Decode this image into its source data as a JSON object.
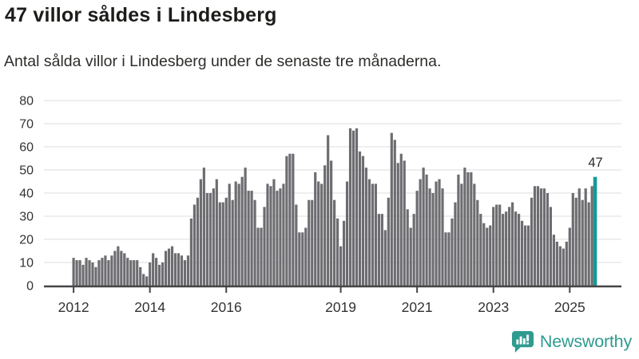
{
  "header": {
    "title": "47 villor såldes i Lindesberg",
    "subtitle": "Antal sålda villor i Lindesberg under de senaste tre månaderna."
  },
  "chart_data": {
    "type": "bar",
    "title": "47 villor såldes i Lindesberg",
    "subtitle": "Antal sålda villor i Lindesberg under de senaste tre månaderna.",
    "x_unit": "month",
    "x_start": "2012-01",
    "x_end": "2025-09",
    "values": [
      12,
      11,
      11,
      9,
      12,
      11,
      10,
      8,
      11,
      12,
      13,
      11,
      13,
      15,
      17,
      15,
      14,
      12,
      11,
      11,
      11,
      8,
      5,
      4,
      10,
      14,
      12,
      9,
      10,
      15,
      16,
      17,
      14,
      14,
      13,
      11,
      13,
      29,
      35,
      38,
      46,
      51,
      40,
      40,
      42,
      46,
      36,
      36,
      38,
      44,
      37,
      45,
      44,
      47,
      51,
      41,
      41,
      37,
      25,
      25,
      34,
      44,
      43,
      46,
      41,
      42,
      44,
      56,
      57,
      57,
      35,
      23,
      23,
      25,
      37,
      37,
      49,
      45,
      44,
      52,
      65,
      54,
      37,
      29,
      17,
      28,
      45,
      68,
      67,
      68,
      58,
      56,
      51,
      46,
      44,
      44,
      31,
      31,
      24,
      38,
      66,
      63,
      53,
      57,
      54,
      33,
      25,
      31,
      41,
      46,
      51,
      48,
      42,
      40,
      45,
      46,
      42,
      23,
      23,
      29,
      36,
      48,
      44,
      51,
      49,
      49,
      44,
      37,
      31,
      27,
      25,
      26,
      34,
      35,
      35,
      31,
      32,
      34,
      36,
      32,
      31,
      28,
      26,
      26,
      38,
      43,
      43,
      42,
      42,
      40,
      34,
      22,
      19,
      17,
      16,
      19,
      25,
      40,
      38,
      42,
      37,
      42,
      36,
      43,
      47
    ],
    "highlight": {
      "index": 164,
      "value": 47,
      "label": "47",
      "color": "#149b96"
    },
    "bar_color": "#6d6d71",
    "grid": true,
    "grid_color": "#e4e4e4",
    "axis_color": "#454545",
    "tick_label_color": "#333333",
    "annotation_color": "#2a2a2a",
    "ylim": [
      0,
      80
    ],
    "yticks": [
      0,
      10,
      20,
      30,
      40,
      50,
      60,
      70,
      80
    ],
    "xticks": [
      {
        "label": "2012",
        "month_index": 0
      },
      {
        "label": "2014",
        "month_index": 24
      },
      {
        "label": "2016",
        "month_index": 48
      },
      {
        "label": "2019",
        "month_index": 84
      },
      {
        "label": "2021",
        "month_index": 108
      },
      {
        "label": "2023",
        "month_index": 132
      },
      {
        "label": "2025",
        "month_index": 156
      }
    ],
    "legend": "none"
  },
  "branding": {
    "logo_text": "Newsworthy",
    "logo_color": "#2f9b90",
    "logo_icon": "speech-bubble-bar-chart-icon"
  }
}
